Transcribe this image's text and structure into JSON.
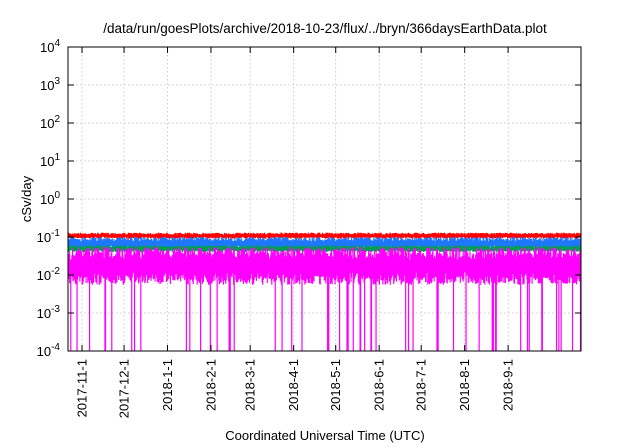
{
  "chart_data": {
    "type": "line",
    "title": "/data/run/goesPlots/archive/2018-10-23/flux/../bryn/366daysEarthData.plot",
    "xlabel": "Coordinated Universal Time (UTC)",
    "ylabel": "cSv/day",
    "yscale": "log",
    "ylim": [
      0.0001,
      10000
    ],
    "xlim": [
      "2017-10-22",
      "2018-10-23"
    ],
    "grid": true,
    "x_ticks": [
      "2017-11-1",
      "2017-12-1",
      "2018-1-1",
      "2018-2-1",
      "2018-3-1",
      "2018-4-1",
      "2018-5-1",
      "2018-6-1",
      "2018-7-1",
      "2018-8-1",
      "2018-9-1"
    ],
    "y_ticks": [
      {
        "value": 0.0001,
        "base": "10",
        "exp": "-4"
      },
      {
        "value": 0.001,
        "base": "10",
        "exp": "-3"
      },
      {
        "value": 0.01,
        "base": "10",
        "exp": "-2"
      },
      {
        "value": 0.1,
        "base": "10",
        "exp": "-1"
      },
      {
        "value": 1,
        "base": "10",
        "exp": "0"
      },
      {
        "value": 10,
        "base": "10",
        "exp": "1"
      },
      {
        "value": 100,
        "base": "10",
        "exp": "2"
      },
      {
        "value": 1000,
        "base": "10",
        "exp": "3"
      },
      {
        "value": 10000,
        "base": "10",
        "exp": "4"
      }
    ],
    "series": [
      {
        "color": "#ff0000",
        "typical_low": 0.09,
        "typical_high": 0.13
      },
      {
        "color": "#1e78ff",
        "typical_low": 0.045,
        "typical_high": 0.1
      },
      {
        "color": "#00a050",
        "typical_low": 0.04,
        "typical_high": 0.06
      },
      {
        "color": "#ff00ff",
        "typical_low": 0.0055,
        "typical_high": 0.055,
        "dropouts_to": 0.0001
      }
    ]
  }
}
